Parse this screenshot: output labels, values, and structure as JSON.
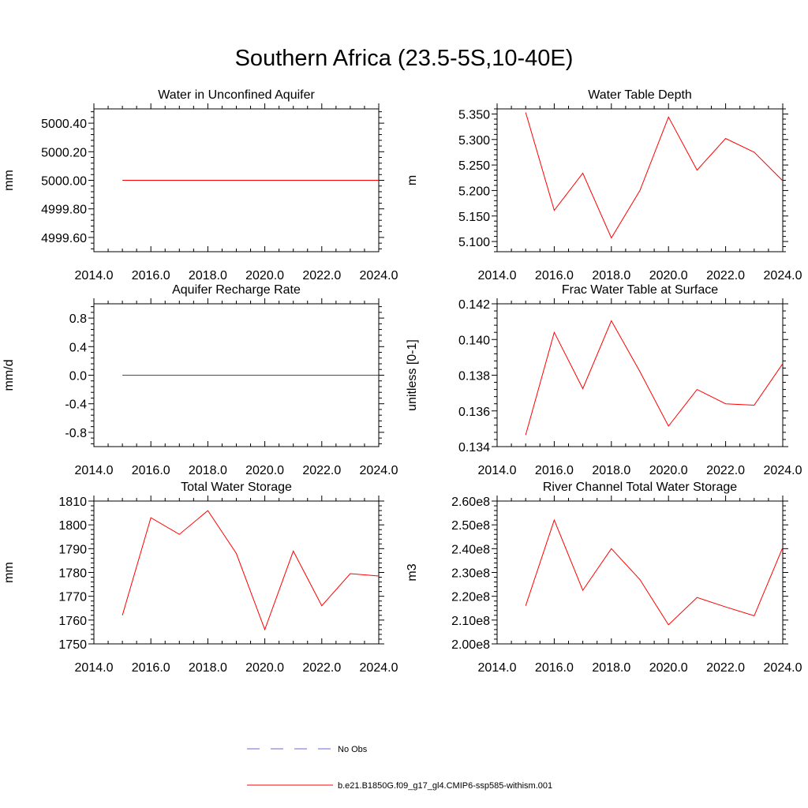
{
  "title": "Southern Africa (23.5-5S,10-40E)",
  "colors": {
    "model": "#ff0000",
    "obs": "#6a6ad0",
    "axis": "#000000"
  },
  "legend": {
    "obs_label": "No Obs",
    "model_label": "b.e21.B1850G.f09_g17_gl4.CMIP6-ssp585-withism.001"
  },
  "chart_data": [
    {
      "type": "line",
      "title": "Water in Unconfined Aquifer",
      "ylabel": "mm",
      "xlim": [
        2014,
        2024
      ],
      "ylim": [
        4999.5,
        5000.5
      ],
      "xticks": [
        2014,
        2016,
        2018,
        2020,
        2022,
        2024
      ],
      "xtick_labels": [
        "2014.0",
        "2016.0",
        "2018.0",
        "2020.0",
        "2022.0",
        "2024.0"
      ],
      "yticks": [
        4999.6,
        4999.8,
        5000.0,
        5000.2,
        5000.4
      ],
      "ytick_labels": [
        "4999.60",
        "4999.80",
        "5000.00",
        "5000.20",
        "5000.40"
      ],
      "x": [
        2015,
        2016,
        2017,
        2018,
        2019,
        2020,
        2021,
        2022,
        2023,
        2024
      ],
      "series": [
        {
          "name": "b.e21.B1850G.f09_g17_gl4.CMIP6-ssp585-withism.001",
          "values": [
            5000.0,
            5000.0,
            5000.0,
            5000.0,
            5000.0,
            5000.0,
            5000.0,
            5000.0,
            5000.0,
            5000.0
          ]
        }
      ]
    },
    {
      "type": "line",
      "title": "Water Table Depth",
      "ylabel": "m",
      "xlim": [
        2014,
        2024
      ],
      "ylim": [
        5.08,
        5.36
      ],
      "xticks": [
        2014,
        2016,
        2018,
        2020,
        2022,
        2024
      ],
      "xtick_labels": [
        "2014.0",
        "2016.0",
        "2018.0",
        "2020.0",
        "2022.0",
        "2024.0"
      ],
      "yticks": [
        5.1,
        5.15,
        5.2,
        5.25,
        5.3,
        5.35
      ],
      "ytick_labels": [
        "5.100",
        "5.150",
        "5.200",
        "5.250",
        "5.300",
        "5.350"
      ],
      "x": [
        2015,
        2016,
        2017,
        2018,
        2019,
        2020,
        2021,
        2022,
        2023,
        2024
      ],
      "series": [
        {
          "name": "b.e21.B1850G.f09_g17_gl4.CMIP6-ssp585-withism.001",
          "values": [
            5.353,
            5.161,
            5.234,
            5.107,
            5.2,
            5.344,
            5.24,
            5.302,
            5.275,
            5.219
          ]
        }
      ]
    },
    {
      "type": "line",
      "title": "Aquifer Recharge Rate",
      "ylabel": "mm/d",
      "xlim": [
        2014,
        2024
      ],
      "ylim": [
        -1.0,
        1.0
      ],
      "xticks": [
        2014,
        2016,
        2018,
        2020,
        2022,
        2024
      ],
      "xtick_labels": [
        "2014.0",
        "2016.0",
        "2018.0",
        "2020.0",
        "2022.0",
        "2024.0"
      ],
      "yticks": [
        -0.8,
        -0.4,
        0.0,
        0.4,
        0.8
      ],
      "ytick_labels": [
        "-0.8",
        "-0.4",
        "0.0",
        "0.4",
        "0.8"
      ],
      "x": [
        2015,
        2016,
        2017,
        2018,
        2019,
        2020,
        2021,
        2022,
        2023,
        2024
      ],
      "series": [
        {
          "name": "b.e21.B1850G.f09_g17_gl4.CMIP6-ssp585-withism.001",
          "values": [
            0,
            0,
            0,
            0,
            0,
            0,
            0,
            0,
            0,
            0
          ]
        }
      ]
    },
    {
      "type": "line",
      "title": "Frac Water Table at Surface",
      "ylabel": "unitless [0-1]",
      "xlim": [
        2014,
        2024
      ],
      "ylim": [
        0.134,
        0.142
      ],
      "xticks": [
        2014,
        2016,
        2018,
        2020,
        2022,
        2024
      ],
      "xtick_labels": [
        "2014.0",
        "2016.0",
        "2018.0",
        "2020.0",
        "2022.0",
        "2024.0"
      ],
      "yticks": [
        0.134,
        0.136,
        0.138,
        0.14,
        0.142
      ],
      "ytick_labels": [
        "0.134",
        "0.136",
        "0.138",
        "0.140",
        "0.142"
      ],
      "x": [
        2015,
        2016,
        2017,
        2018,
        2019,
        2020,
        2021,
        2022,
        2023,
        2024
      ],
      "series": [
        {
          "name": "b.e21.B1850G.f09_g17_gl4.CMIP6-ssp585-withism.001",
          "values": [
            0.13465,
            0.1404,
            0.13725,
            0.14105,
            0.1382,
            0.13515,
            0.1372,
            0.1364,
            0.13632,
            0.13865
          ]
        }
      ]
    },
    {
      "type": "line",
      "title": "Total Water Storage",
      "ylabel": "mm",
      "xlim": [
        2014,
        2024
      ],
      "ylim": [
        1750,
        1810
      ],
      "xticks": [
        2014,
        2016,
        2018,
        2020,
        2022,
        2024
      ],
      "xtick_labels": [
        "2014.0",
        "2016.0",
        "2018.0",
        "2020.0",
        "2022.0",
        "2024.0"
      ],
      "yticks": [
        1750,
        1760,
        1770,
        1780,
        1790,
        1800,
        1810
      ],
      "ytick_labels": [
        "1750",
        "1760",
        "1770",
        "1780",
        "1790",
        "1800",
        "1810"
      ],
      "x": [
        2015,
        2016,
        2017,
        2018,
        2019,
        2020,
        2021,
        2022,
        2023,
        2024
      ],
      "series": [
        {
          "name": "b.e21.B1850G.f09_g17_gl4.CMIP6-ssp585-withism.001",
          "values": [
            1762,
            1803,
            1796,
            1806,
            1788,
            1756,
            1789,
            1766,
            1779.5,
            1778.5
          ]
        }
      ]
    },
    {
      "type": "line",
      "title": "River Channel Total Water Storage",
      "ylabel": "m3",
      "xlim": [
        2014,
        2024
      ],
      "ylim": [
        200000000,
        260000000
      ],
      "xticks": [
        2014,
        2016,
        2018,
        2020,
        2022,
        2024
      ],
      "xtick_labels": [
        "2014.0",
        "2016.0",
        "2018.0",
        "2020.0",
        "2022.0",
        "2024.0"
      ],
      "yticks": [
        200000000,
        210000000,
        220000000,
        230000000,
        240000000,
        250000000,
        260000000
      ],
      "ytick_labels": [
        "2.00e8",
        "2.10e8",
        "2.20e8",
        "2.30e8",
        "2.40e8",
        "2.50e8",
        "2.60e8"
      ],
      "x": [
        2015,
        2016,
        2017,
        2018,
        2019,
        2020,
        2021,
        2022,
        2023,
        2024
      ],
      "series": [
        {
          "name": "b.e21.B1850G.f09_g17_gl4.CMIP6-ssp585-withism.001",
          "values": [
            216000000,
            252000000,
            222500000,
            240000000,
            227000000,
            208000000,
            219500000,
            215500000,
            211800000,
            240500000
          ]
        }
      ]
    }
  ]
}
